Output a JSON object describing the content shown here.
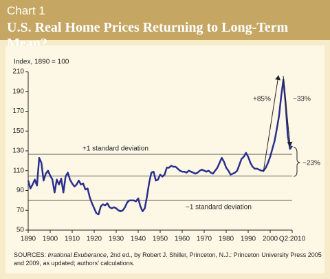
{
  "chart_data": {
    "type": "line",
    "kicker": "Chart 1",
    "title": "U.S. Real Home Prices Returning to Long-Term Mean?",
    "y_label": "Index, 1890 = 100",
    "color": "#2b2f8f",
    "x": [
      1890,
      1891,
      1892,
      1893,
      1894,
      1895,
      1896,
      1897,
      1898,
      1899,
      1900,
      1901,
      1902,
      1903,
      1904,
      1905,
      1906,
      1907,
      1908,
      1909,
      1910,
      1911,
      1912,
      1913,
      1914,
      1915,
      1916,
      1917,
      1918,
      1919,
      1920,
      1921,
      1922,
      1923,
      1924,
      1925,
      1926,
      1927,
      1928,
      1929,
      1930,
      1931,
      1932,
      1933,
      1934,
      1935,
      1936,
      1937,
      1938,
      1939,
      1940,
      1941,
      1942,
      1943,
      1944,
      1945,
      1946,
      1947,
      1948,
      1949,
      1950,
      1951,
      1952,
      1953,
      1954,
      1955,
      1956,
      1957,
      1958,
      1959,
      1960,
      1961,
      1962,
      1963,
      1964,
      1965,
      1966,
      1967,
      1968,
      1969,
      1970,
      1971,
      1972,
      1973,
      1974,
      1975,
      1976,
      1977,
      1978,
      1979,
      1980,
      1981,
      1982,
      1983,
      1984,
      1985,
      1986,
      1987,
      1988,
      1989,
      1990,
      1991,
      1992,
      1993,
      1994,
      1995,
      1996,
      1997,
      1998,
      1999,
      2000,
      2001,
      2002,
      2003,
      2004,
      2005,
      2006,
      2007,
      2008,
      2009,
      2010
    ],
    "values": [
      100,
      92,
      96,
      101,
      95,
      123,
      118,
      100,
      107,
      110,
      105,
      101,
      88,
      101,
      96,
      102,
      88,
      104,
      108,
      101,
      97,
      94,
      96,
      100,
      96,
      97,
      91,
      92,
      83,
      77,
      72,
      67,
      66,
      74,
      76,
      75,
      77,
      73,
      72,
      73,
      72,
      70,
      69,
      70,
      73,
      78,
      80,
      80,
      80,
      79,
      82,
      74,
      69,
      72,
      84,
      98,
      108,
      109,
      100,
      101,
      106,
      104,
      106,
      113,
      113,
      115,
      114,
      114,
      112,
      110,
      109,
      109,
      108,
      110,
      109,
      108,
      107,
      108,
      110,
      111,
      110,
      109,
      110,
      108,
      107,
      110,
      113,
      118,
      123,
      119,
      113,
      110,
      106,
      107,
      108,
      110,
      116,
      122,
      124,
      128,
      124,
      118,
      114,
      112,
      112,
      111,
      110,
      110,
      113,
      118,
      124,
      132,
      140,
      152,
      165,
      185,
      202,
      178,
      145,
      132,
      135
    ],
    "xlim": [
      1890,
      2010
    ],
    "xticks": [
      1890,
      1900,
      1910,
      1920,
      1930,
      1940,
      1950,
      1960,
      1970,
      1980,
      1990,
      2000,
      {
        "value": 2010,
        "label": "Q2:2010"
      }
    ],
    "ylim": [
      50,
      210
    ],
    "yticks": [
      50,
      70,
      90,
      110,
      130,
      150,
      170,
      190,
      210
    ],
    "reference_lines": [
      {
        "value": 126.5,
        "label": "+1 standard deviation"
      },
      {
        "value": 104.5
      },
      {
        "value": 80,
        "label": "−1 standard deviation"
      }
    ],
    "annotations": [
      "+85%",
      "−33%",
      "−23%"
    ],
    "source": {
      "prefix": "SOURCES: ",
      "book": "Irrational Exuberance",
      "rest": ", 2nd ed., by Robert J. Shiller,  Princeton, N.J.: Princeton University Press 2005 and 2009, as updated; authors’ calculations."
    }
  }
}
